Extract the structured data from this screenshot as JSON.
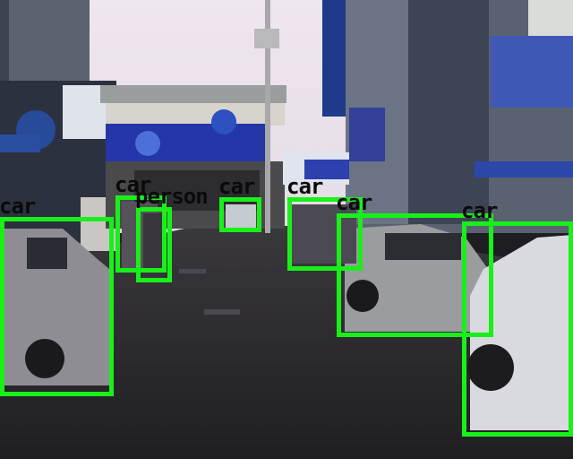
{
  "detections": [
    {
      "label": "car"
    },
    {
      "label": "car"
    },
    {
      "label": "person"
    },
    {
      "label": "car"
    },
    {
      "label": "car"
    },
    {
      "label": "car"
    },
    {
      "label": "car"
    }
  ],
  "colors": {
    "box": "#19f019",
    "label_text": "#0a0a0a",
    "sky": "#eee6ee",
    "road": "#2a292c",
    "signboard_blue": "#2e3fae"
  }
}
